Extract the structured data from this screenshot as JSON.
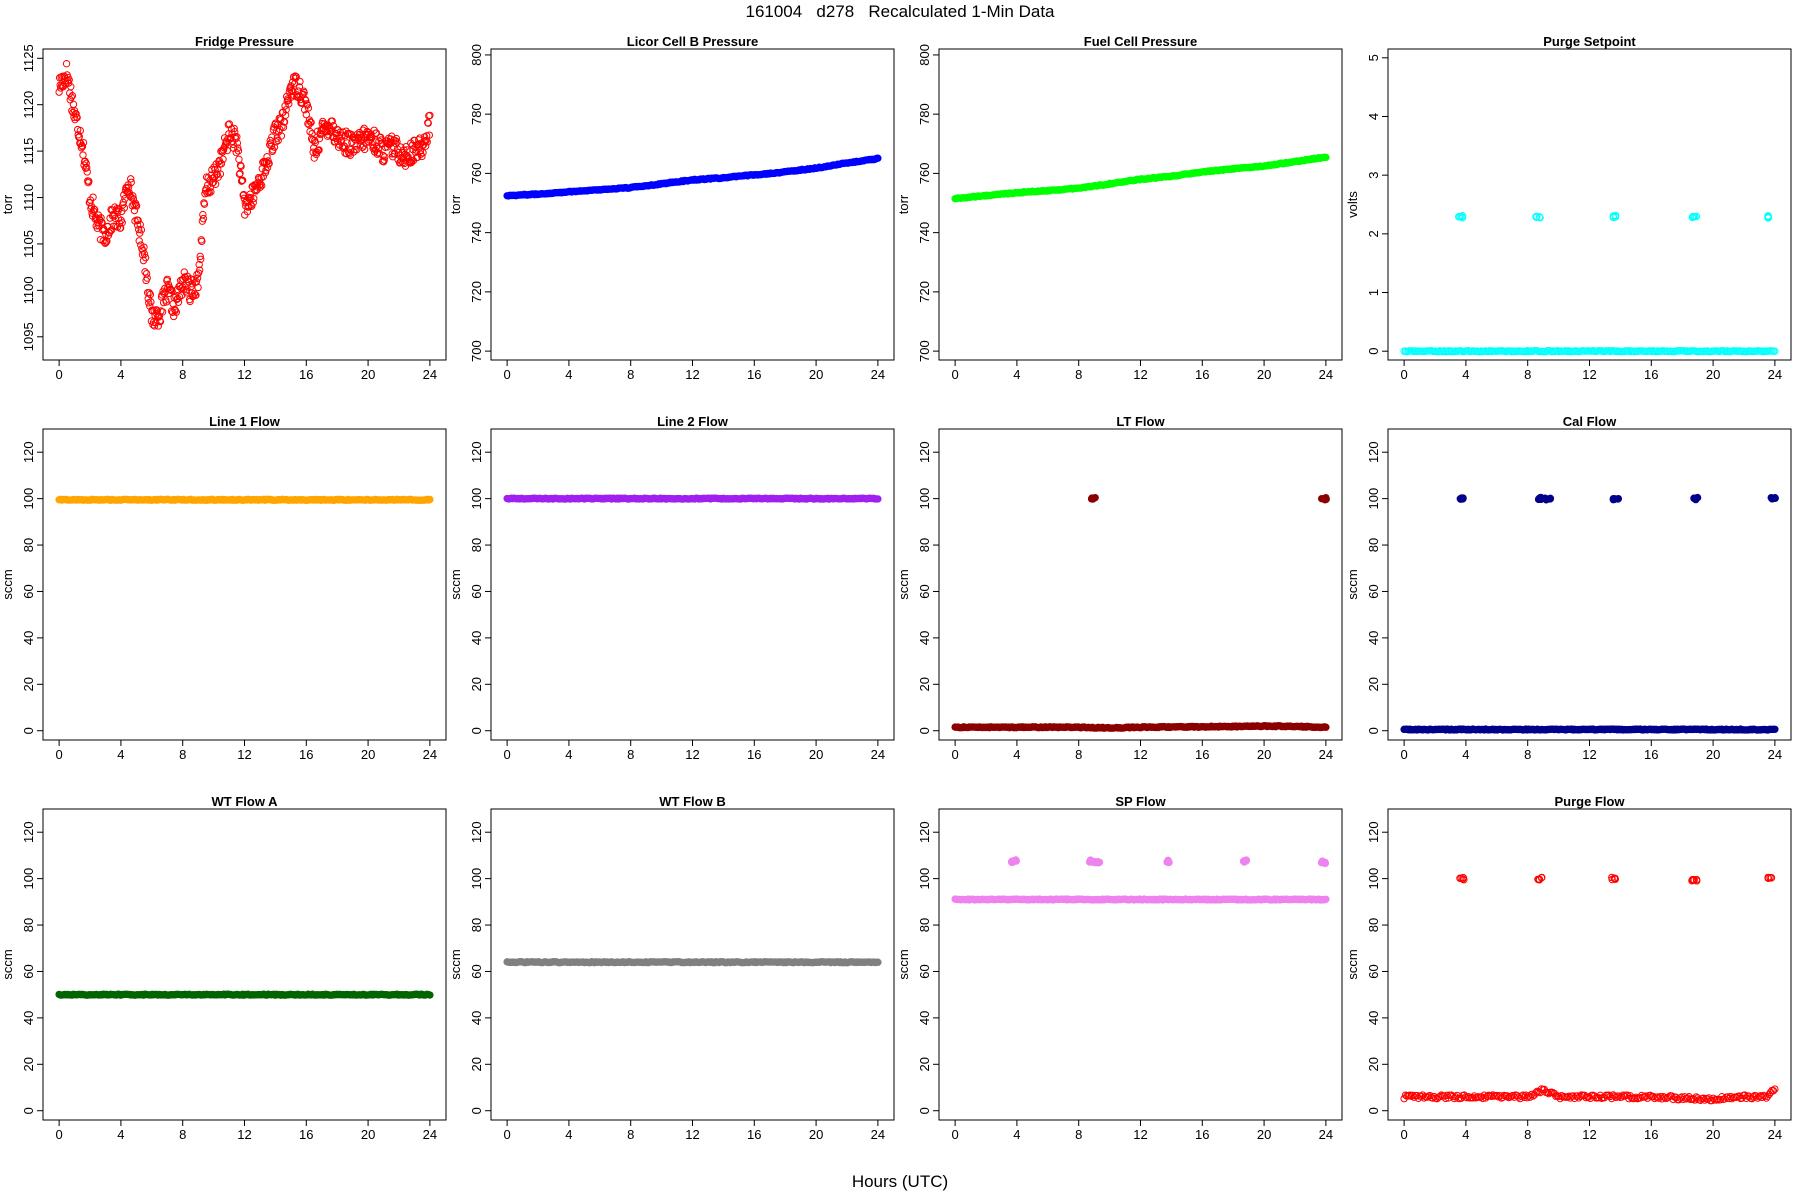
{
  "figure": {
    "title": "161004   d278   Recalculated 1-Min Data",
    "xlabel": "Hours (UTC)"
  },
  "chart_data": [
    {
      "type": "scatter",
      "title": "Fridge Pressure",
      "ylabel": "torr",
      "xlim": [
        0,
        24
      ],
      "ylim": [
        1092.5,
        1126
      ],
      "xticks": [
        0,
        4,
        8,
        12,
        16,
        20,
        24
      ],
      "yticks": [
        1095,
        1100,
        1105,
        1110,
        1115,
        1120,
        1125
      ],
      "color": "#ff0000",
      "marker": "open",
      "series": [
        {
          "x": [
            0,
            0.5,
            1,
            1.5,
            2,
            2.5,
            3,
            3.5,
            4,
            4.5,
            5,
            5.5,
            6,
            6.5,
            7,
            7.5,
            8,
            8.5,
            9,
            9.5,
            10,
            10.5,
            11,
            11.5,
            12,
            12.5,
            13,
            13.5,
            14,
            14.5,
            15,
            15.5,
            16,
            16.5,
            17,
            17.5,
            18,
            18.5,
            19,
            19.5,
            20,
            20.5,
            21,
            21.5,
            22,
            22.5,
            23,
            23.5,
            24
          ],
          "y": [
            1122,
            1123.5,
            1119,
            1116,
            1110,
            1107,
            1106,
            1108,
            1107.5,
            1112,
            1108,
            1104,
            1097,
            1097.5,
            1100,
            1098,
            1101,
            1100,
            1101,
            1111,
            1112,
            1114,
            1117,
            1116,
            1109,
            1110,
            1112,
            1114,
            1117,
            1118,
            1122,
            1122,
            1120,
            1115,
            1117,
            1118,
            1116.5,
            1116,
            1115.5,
            1116,
            1116.5,
            1116,
            1115,
            1115.5,
            1115,
            1114.5,
            1115,
            1115.5,
            1118
          ]
        }
      ]
    },
    {
      "type": "scatter",
      "title": "Licor Cell B Pressure",
      "ylabel": "torr",
      "xlim": [
        0,
        24
      ],
      "ylim": [
        697,
        802
      ],
      "xticks": [
        0,
        4,
        8,
        12,
        16,
        20,
        24
      ],
      "yticks": [
        700,
        720,
        740,
        760,
        780,
        800
      ],
      "color": "#0000ff",
      "marker": "filled",
      "series": [
        {
          "x": [
            0,
            2,
            4,
            6,
            8,
            10,
            12,
            14,
            16,
            18,
            20,
            22,
            24
          ],
          "y": [
            752.5,
            753,
            753.8,
            754.5,
            755.2,
            756.5,
            757.8,
            758.5,
            759.5,
            760.5,
            761.8,
            763.5,
            765
          ]
        }
      ]
    },
    {
      "type": "scatter",
      "title": "Fuel Cell Pressure",
      "ylabel": "torr",
      "xlim": [
        0,
        24
      ],
      "ylim": [
        697,
        802
      ],
      "xticks": [
        0,
        4,
        8,
        12,
        16,
        20,
        24
      ],
      "yticks": [
        700,
        720,
        740,
        760,
        780,
        800
      ],
      "color": "#00ff00",
      "marker": "filled",
      "series": [
        {
          "x": [
            0,
            2,
            4,
            6,
            8,
            10,
            12,
            14,
            16,
            18,
            20,
            22,
            24
          ],
          "y": [
            751.5,
            752.5,
            753.5,
            754.2,
            755,
            756.5,
            758,
            759,
            760.5,
            761.5,
            762.5,
            764,
            765.5
          ]
        }
      ]
    },
    {
      "type": "scatter",
      "title": "Purge Setpoint",
      "ylabel": "volts",
      "xlim": [
        0,
        24
      ],
      "ylim": [
        -0.15,
        5.15
      ],
      "xticks": [
        0,
        4,
        8,
        12,
        16,
        20,
        24
      ],
      "yticks": [
        0,
        1,
        2,
        3,
        4,
        5
      ],
      "color": "#00ffff",
      "marker": "open",
      "series": [
        {
          "x": [
            0,
            2,
            4,
            6,
            8,
            10,
            12,
            14,
            16,
            18,
            20,
            22,
            24
          ],
          "y": [
            0,
            0,
            0,
            0,
            0,
            0,
            0,
            0,
            0,
            0,
            0,
            0,
            0
          ]
        },
        {
          "x": [
            3.7,
            8.7,
            13.6,
            18.8,
            23.7
          ],
          "y": [
            2.29,
            2.29,
            2.3,
            2.3,
            2.29
          ]
        }
      ]
    },
    {
      "type": "scatter",
      "title": "Line 1 Flow",
      "ylabel": "sccm",
      "xlim": [
        0,
        24
      ],
      "ylim": [
        -4,
        130
      ],
      "xticks": [
        0,
        4,
        8,
        12,
        16,
        20,
        24
      ],
      "yticks": [
        0,
        20,
        40,
        60,
        80,
        100,
        120
      ],
      "color": "#ffa500",
      "marker": "filled",
      "series": [
        {
          "x": [
            0,
            2,
            4,
            6,
            8,
            10,
            12,
            14,
            16,
            18,
            20,
            22,
            24
          ],
          "y": [
            99.5,
            99.5,
            99.5,
            99.5,
            99.5,
            99.5,
            99.5,
            99.5,
            99.5,
            99.5,
            99.5,
            99.5,
            99.5
          ]
        }
      ]
    },
    {
      "type": "scatter",
      "title": "Line 2 Flow",
      "ylabel": "sccm",
      "xlim": [
        0,
        24
      ],
      "ylim": [
        -4,
        130
      ],
      "xticks": [
        0,
        4,
        8,
        12,
        16,
        20,
        24
      ],
      "yticks": [
        0,
        20,
        40,
        60,
        80,
        100,
        120
      ],
      "color": "#a020f0",
      "marker": "filled",
      "series": [
        {
          "x": [
            0,
            2,
            4,
            6,
            8,
            10,
            12,
            14,
            16,
            18,
            20,
            22,
            24
          ],
          "y": [
            100,
            100,
            100,
            100,
            100,
            100,
            100,
            100,
            100,
            100,
            100,
            100,
            100
          ]
        }
      ]
    },
    {
      "type": "scatter",
      "title": "LT Flow",
      "ylabel": "sccm",
      "xlim": [
        0,
        24
      ],
      "ylim": [
        -4,
        130
      ],
      "xticks": [
        0,
        4,
        8,
        12,
        16,
        20,
        24
      ],
      "yticks": [
        0,
        20,
        40,
        60,
        80,
        100,
        120
      ],
      "color": "#8b0000",
      "marker": "filled",
      "series": [
        {
          "x": [
            0,
            2,
            4,
            6,
            8,
            10,
            12,
            14,
            16,
            18,
            20,
            22,
            24
          ],
          "y": [
            1.5,
            1.5,
            1.5,
            1.5,
            1.5,
            1.2,
            1.5,
            1.6,
            1.7,
            1.8,
            2,
            1.8,
            1.5
          ]
        },
        {
          "x": [
            8.9,
            23.9
          ],
          "y": [
            100,
            100
          ]
        }
      ]
    },
    {
      "type": "scatter",
      "title": "Cal Flow",
      "ylabel": "sccm",
      "xlim": [
        0,
        24
      ],
      "ylim": [
        -4,
        130
      ],
      "xticks": [
        0,
        4,
        8,
        12,
        16,
        20,
        24
      ],
      "yticks": [
        0,
        20,
        40,
        60,
        80,
        100,
        120
      ],
      "color": "#00008b",
      "marker": "filled",
      "series": [
        {
          "x": [
            0,
            2,
            4,
            6,
            8,
            10,
            12,
            14,
            16,
            18,
            20,
            22,
            24
          ],
          "y": [
            0.5,
            0.5,
            0.5,
            0.5,
            0.5,
            0.5,
            0.5,
            0.5,
            0.5,
            0.5,
            0.5,
            0.5,
            0.5
          ]
        },
        {
          "x": [
            3.8,
            8.8,
            9.3,
            13.7,
            18.9,
            23.9
          ],
          "y": [
            100,
            100,
            100,
            100,
            100,
            100
          ]
        }
      ]
    },
    {
      "type": "scatter",
      "title": "WT Flow A",
      "ylabel": "sccm",
      "xlim": [
        0,
        24
      ],
      "ylim": [
        -4,
        130
      ],
      "xticks": [
        0,
        4,
        8,
        12,
        16,
        20,
        24
      ],
      "yticks": [
        0,
        20,
        40,
        60,
        80,
        100,
        120
      ],
      "color": "#006400",
      "marker": "filled",
      "series": [
        {
          "x": [
            0,
            2,
            4,
            6,
            8,
            10,
            12,
            14,
            16,
            18,
            20,
            22,
            24
          ],
          "y": [
            50,
            50,
            50,
            50,
            50,
            50,
            50,
            50,
            50,
            50,
            50,
            50,
            50
          ]
        }
      ]
    },
    {
      "type": "scatter",
      "title": "WT Flow B",
      "ylabel": "sccm",
      "xlim": [
        0,
        24
      ],
      "ylim": [
        -4,
        130
      ],
      "xticks": [
        0,
        4,
        8,
        12,
        16,
        20,
        24
      ],
      "yticks": [
        0,
        20,
        40,
        60,
        80,
        100,
        120
      ],
      "color": "#808080",
      "marker": "filled",
      "series": [
        {
          "x": [
            0,
            2,
            4,
            6,
            8,
            10,
            12,
            14,
            16,
            18,
            20,
            22,
            24
          ],
          "y": [
            64,
            64,
            64,
            64,
            64,
            64,
            64,
            64,
            64,
            64,
            64,
            64,
            64
          ]
        }
      ]
    },
    {
      "type": "scatter",
      "title": "SP Flow",
      "ylabel": "sccm",
      "xlim": [
        0,
        24
      ],
      "ylim": [
        -4,
        130
      ],
      "xticks": [
        0,
        4,
        8,
        12,
        16,
        20,
        24
      ],
      "yticks": [
        0,
        20,
        40,
        60,
        80,
        100,
        120
      ],
      "color": "#ee82ee",
      "marker": "filled",
      "series": [
        {
          "x": [
            0,
            2,
            4,
            6,
            8,
            10,
            12,
            14,
            16,
            18,
            20,
            22,
            24
          ],
          "y": [
            91,
            91,
            91,
            91,
            91,
            91,
            91,
            91,
            91,
            91,
            91,
            91,
            91
          ]
        },
        {
          "x": [
            3.8,
            8.8,
            9.2,
            13.7,
            18.8,
            23.8
          ],
          "y": [
            107.5,
            107.5,
            107,
            107.5,
            107.5,
            107
          ]
        }
      ]
    },
    {
      "type": "scatter",
      "title": "Purge Flow",
      "ylabel": "sccm",
      "xlim": [
        0,
        24
      ],
      "ylim": [
        -4,
        130
      ],
      "xticks": [
        0,
        4,
        8,
        12,
        16,
        20,
        24
      ],
      "yticks": [
        0,
        20,
        40,
        60,
        80,
        100,
        120
      ],
      "color": "#ff0000",
      "marker": "open",
      "series": [
        {
          "x": [
            0,
            2,
            4,
            6,
            8,
            9,
            10,
            12,
            14,
            16,
            18,
            20,
            22,
            23.5,
            24
          ],
          "y": [
            6,
            6,
            6,
            6,
            6,
            9,
            6,
            6,
            6,
            6,
            5.5,
            5,
            6,
            6,
            10
          ]
        },
        {
          "x": [
            3.7,
            8.8,
            13.6,
            18.8,
            23.7
          ],
          "y": [
            100,
            100,
            100,
            99.5,
            100
          ]
        }
      ]
    }
  ]
}
